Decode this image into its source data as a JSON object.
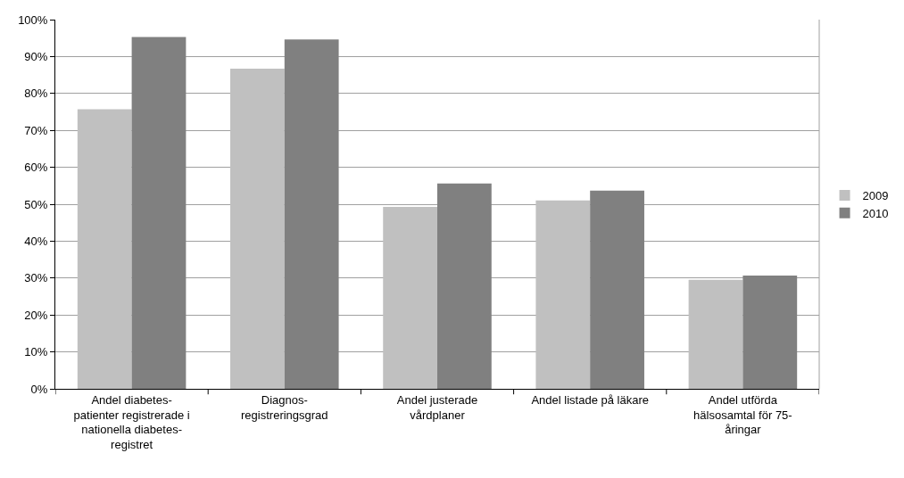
{
  "chart_data": {
    "type": "bar",
    "categories": [
      "Andel diabetes-\npatienter registrerade i\nnationella diabetes-\nregistret",
      "Diagnos-\nregistreringsgrad",
      "Andel justerade\nvårdplaner",
      "Andel listade på läkare",
      "Andel utförda\nhälsosamtal för 75-\nåringar"
    ],
    "series": [
      {
        "name": "2009",
        "color": "#c0c0c0",
        "values": [
          75.7,
          86.7,
          49.3,
          51.0,
          29.5
        ]
      },
      {
        "name": "2010",
        "color": "#808080",
        "values": [
          95.3,
          94.6,
          55.6,
          53.7,
          30.7
        ]
      }
    ],
    "ylim": [
      0,
      100
    ],
    "yticks": [
      {
        "value": 0,
        "label": "0%"
      },
      {
        "value": 10,
        "label": "10%"
      },
      {
        "value": 20,
        "label": "20%"
      },
      {
        "value": 30,
        "label": "30%"
      },
      {
        "value": 40,
        "label": "40%"
      },
      {
        "value": 50,
        "label": "50%"
      },
      {
        "value": 60,
        "label": "60%"
      },
      {
        "value": 70,
        "label": "70%"
      },
      {
        "value": 80,
        "label": "80%"
      },
      {
        "value": 90,
        "label": "90%"
      },
      {
        "value": 100,
        "label": "100%"
      }
    ],
    "grid": "y",
    "legend": "right"
  }
}
